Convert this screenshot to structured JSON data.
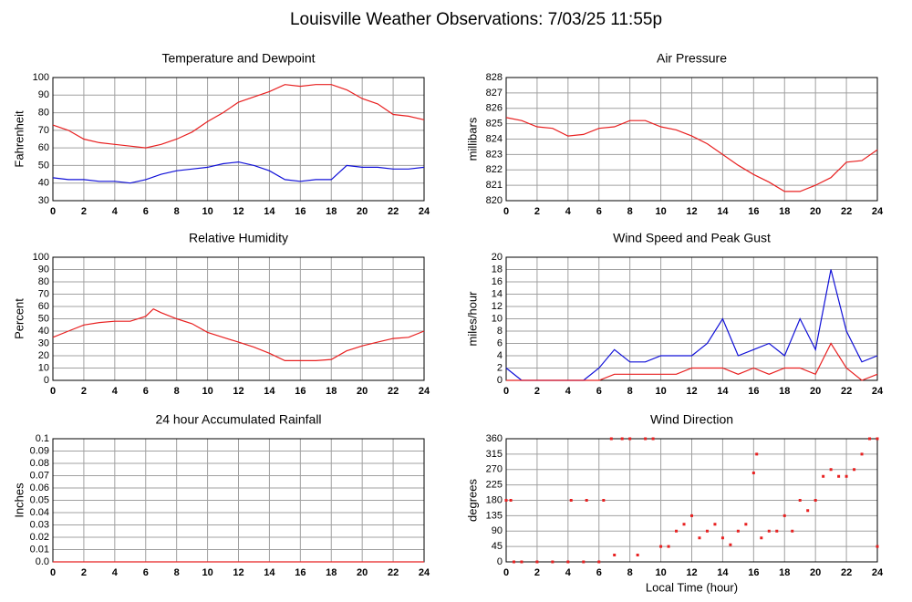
{
  "title": "Louisville Weather Observations: 7/03/25 11:55p",
  "chart_data": [
    {
      "type": "line",
      "title": "Temperature and Dewpoint",
      "ylabel": "Fahrenheit",
      "x": [
        0,
        1,
        2,
        3,
        4,
        5,
        6,
        7,
        8,
        9,
        10,
        11,
        12,
        13,
        14,
        15,
        16,
        17,
        18,
        19,
        20,
        21,
        22,
        23,
        24
      ],
      "series": [
        {
          "color": "#e82020",
          "values": [
            73,
            70,
            65,
            63,
            62,
            61,
            60,
            62,
            65,
            69,
            75,
            80,
            86,
            89,
            92,
            96,
            95,
            96,
            96,
            93,
            88,
            85,
            79,
            78,
            76
          ]
        },
        {
          "color": "#1010d8",
          "values": [
            43,
            42,
            42,
            41,
            41,
            40,
            42,
            45,
            47,
            48,
            49,
            51,
            52,
            50,
            47,
            42,
            41,
            42,
            42,
            50,
            49,
            49,
            48,
            48,
            49
          ]
        }
      ],
      "xlim": [
        0,
        24
      ],
      "xticks": [
        0,
        2,
        4,
        6,
        8,
        10,
        12,
        14,
        16,
        18,
        20,
        22,
        24
      ],
      "ylim": [
        30,
        100
      ],
      "yticks": [
        30,
        40,
        50,
        60,
        70,
        80,
        90,
        100
      ],
      "grid": true
    },
    {
      "type": "line",
      "title": "Air Pressure",
      "ylabel": "millibars",
      "x": [
        0,
        1,
        2,
        3,
        4,
        5,
        6,
        7,
        8,
        9,
        10,
        11,
        12,
        13,
        14,
        15,
        16,
        17,
        18,
        19,
        20,
        21,
        22,
        23,
        24
      ],
      "series": [
        {
          "color": "#e82020",
          "values": [
            825.4,
            825.2,
            824.8,
            824.7,
            824.2,
            824.3,
            824.7,
            824.8,
            825.2,
            825.2,
            824.8,
            824.6,
            824.2,
            823.7,
            823.0,
            822.3,
            821.7,
            821.2,
            820.6,
            820.6,
            821.0,
            821.5,
            822.5,
            822.6,
            823.3
          ]
        }
      ],
      "xlim": [
        0,
        24
      ],
      "xticks": [
        0,
        2,
        4,
        6,
        8,
        10,
        12,
        14,
        16,
        18,
        20,
        22,
        24
      ],
      "ylim": [
        820,
        828
      ],
      "yticks": [
        820,
        821,
        822,
        823,
        824,
        825,
        826,
        827,
        828
      ],
      "grid": true
    },
    {
      "type": "line",
      "title": "Relative Humidity",
      "ylabel": "Percent",
      "x": [
        0,
        1,
        2,
        3,
        4,
        5,
        6,
        6.5,
        7,
        8,
        9,
        10,
        11,
        12,
        13,
        14,
        15,
        16,
        17,
        18,
        19,
        20,
        21,
        22,
        23,
        24
      ],
      "series": [
        {
          "color": "#e82020",
          "values": [
            35,
            40,
            45,
            47,
            48,
            48,
            52,
            58,
            55,
            50,
            46,
            39,
            35,
            31,
            27,
            22,
            16,
            16,
            16,
            17,
            24,
            28,
            31,
            34,
            35,
            40
          ]
        }
      ],
      "xlim": [
        0,
        24
      ],
      "xticks": [
        0,
        2,
        4,
        6,
        8,
        10,
        12,
        14,
        16,
        18,
        20,
        22,
        24
      ],
      "ylim": [
        0,
        100
      ],
      "yticks": [
        0,
        10,
        20,
        30,
        40,
        50,
        60,
        70,
        80,
        90,
        100
      ],
      "grid": true
    },
    {
      "type": "line",
      "title": "Wind Speed and Peak Gust",
      "ylabel": "miles/hour",
      "x": [
        0,
        1,
        2,
        3,
        4,
        5,
        6,
        7,
        8,
        9,
        10,
        11,
        12,
        13,
        14,
        15,
        16,
        17,
        18,
        19,
        20,
        21,
        22,
        23,
        24
      ],
      "series": [
        {
          "color": "#1010d8",
          "values": [
            2,
            0,
            0,
            0,
            0,
            0,
            2,
            5,
            3,
            3,
            4,
            4,
            4,
            6,
            10,
            4,
            5,
            6,
            4,
            10,
            5,
            18,
            8,
            3,
            4
          ]
        },
        {
          "color": "#e82020",
          "values": [
            0,
            0,
            0,
            0,
            0,
            0,
            0,
            1,
            1,
            1,
            1,
            1,
            2,
            2,
            2,
            1,
            2,
            1,
            2,
            2,
            1,
            6,
            2,
            0,
            1
          ]
        }
      ],
      "xlim": [
        0,
        24
      ],
      "xticks": [
        0,
        2,
        4,
        6,
        8,
        10,
        12,
        14,
        16,
        18,
        20,
        22,
        24
      ],
      "ylim": [
        0,
        20
      ],
      "yticks": [
        0,
        2,
        4,
        6,
        8,
        10,
        12,
        14,
        16,
        18,
        20
      ],
      "grid": true
    },
    {
      "type": "line",
      "title": "24 hour Accumulated Rainfall",
      "ylabel": "Inches",
      "x": [
        0,
        24
      ],
      "series": [
        {
          "color": "#e82020",
          "values": [
            0,
            0
          ]
        }
      ],
      "xlim": [
        0,
        24
      ],
      "xticks": [
        0,
        2,
        4,
        6,
        8,
        10,
        12,
        14,
        16,
        18,
        20,
        22,
        24
      ],
      "ylim": [
        0,
        0.1
      ],
      "yticks": [
        {
          "value": 0,
          "label": "0.0"
        },
        0.01,
        0.02,
        0.03,
        0.04,
        0.05,
        0.06,
        0.07,
        0.08,
        0.09,
        0.1
      ],
      "grid": true
    },
    {
      "type": "scatter",
      "title": "Wind Direction",
      "ylabel": "degrees",
      "xlabel": "Local Time (hour)",
      "x": [
        0,
        0.3,
        0.5,
        1,
        2,
        3,
        4,
        4.2,
        5,
        5.2,
        6,
        6.3,
        6.8,
        7,
        7.5,
        8,
        8.5,
        9,
        9.5,
        10,
        10.5,
        11,
        11.5,
        12,
        12.5,
        13,
        13.5,
        14,
        14.5,
        15,
        15.5,
        16,
        16.2,
        16.5,
        17,
        17.5,
        18,
        18.5,
        19,
        19.5,
        20,
        20.5,
        21,
        21.5,
        22,
        22.5,
        23,
        23.5,
        24,
        24
      ],
      "series": [
        {
          "color": "#e82020",
          "values": [
            180,
            180,
            0,
            0,
            0,
            0,
            0,
            180,
            0,
            180,
            0,
            180,
            360,
            20,
            360,
            360,
            20,
            360,
            360,
            45,
            45,
            90,
            110,
            135,
            70,
            90,
            110,
            70,
            50,
            90,
            110,
            260,
            315,
            70,
            90,
            90,
            135,
            90,
            180,
            150,
            180,
            250,
            270,
            250,
            250,
            270,
            315,
            360,
            360,
            45
          ]
        }
      ],
      "xlim": [
        0,
        24
      ],
      "xticks": [
        0,
        2,
        4,
        6,
        8,
        10,
        12,
        14,
        16,
        18,
        20,
        22,
        24
      ],
      "ylim": [
        0,
        360
      ],
      "yticks": [
        0,
        45,
        90,
        135,
        180,
        225,
        270,
        315,
        360
      ],
      "grid": true
    }
  ]
}
